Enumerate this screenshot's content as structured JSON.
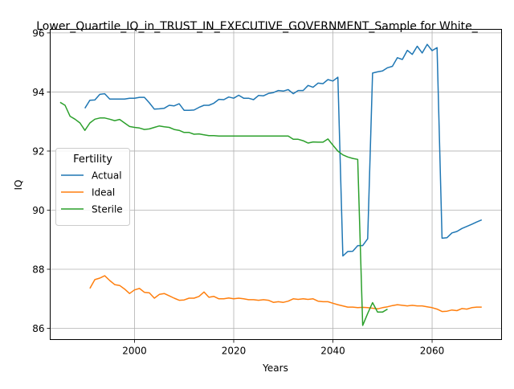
{
  "chart_data": {
    "type": "line",
    "title": "Lower_Quartile_IQ_in_TRUST_IN_EXECUTIVE_GOVERNMENT_Sample for White_",
    "xlabel": "Years",
    "ylabel": "IQ",
    "xlim": [
      1983,
      2074
    ],
    "ylim": [
      85.62,
      96.12
    ],
    "xticks": [
      2000,
      2020,
      2040,
      2060
    ],
    "yticks": [
      86,
      88,
      90,
      92,
      94,
      96
    ],
    "grid": true,
    "legend": {
      "title": "Fertility",
      "position": "center-left"
    },
    "series": [
      {
        "name": "Actual",
        "color": "#1f77b4",
        "x": [
          1990,
          1991,
          1992,
          1993,
          1994,
          1995,
          1996,
          1997,
          1998,
          1999,
          2000,
          2001,
          2002,
          2003,
          2004,
          2005,
          2006,
          2007,
          2008,
          2009,
          2010,
          2011,
          2012,
          2013,
          2014,
          2015,
          2016,
          2017,
          2018,
          2019,
          2020,
          2021,
          2022,
          2023,
          2024,
          2025,
          2026,
          2027,
          2028,
          2029,
          2030,
          2031,
          2032,
          2033,
          2034,
          2035,
          2036,
          2037,
          2038,
          2039,
          2040,
          2041,
          2042,
          2043,
          2044,
          2045,
          2046,
          2047,
          2048,
          2049,
          2050,
          2051,
          2052,
          2053,
          2054,
          2055,
          2056,
          2057,
          2058,
          2059,
          2060,
          2061,
          2062,
          2063,
          2064,
          2065,
          2066,
          2067,
          2068,
          2069,
          2070
        ],
        "y": [
          93.45,
          93.72,
          93.73,
          93.92,
          93.94,
          93.76,
          93.76,
          93.76,
          93.76,
          93.79,
          93.79,
          93.82,
          93.82,
          93.63,
          93.42,
          93.43,
          93.45,
          93.55,
          93.53,
          93.6,
          93.38,
          93.38,
          93.39,
          93.48,
          93.55,
          93.55,
          93.62,
          93.75,
          93.74,
          93.83,
          93.79,
          93.89,
          93.79,
          93.79,
          93.74,
          93.88,
          93.87,
          93.95,
          93.98,
          94.05,
          94.03,
          94.08,
          93.94,
          94.05,
          94.05,
          94.22,
          94.16,
          94.3,
          94.28,
          94.42,
          94.37,
          94.5,
          88.45,
          88.6,
          88.61,
          88.8,
          88.8,
          89.03,
          94.64,
          94.68,
          94.71,
          94.82,
          94.87,
          95.16,
          95.1,
          95.41,
          95.27,
          95.55,
          95.32,
          95.61,
          95.4,
          95.5,
          89.05,
          89.07,
          89.23,
          89.28,
          89.38,
          89.45,
          89.52,
          89.6,
          89.67
        ]
      },
      {
        "name": "Ideal",
        "color": "#ff7f0e",
        "x": [
          1991,
          1992,
          1993,
          1994,
          1995,
          1996,
          1997,
          1998,
          1999,
          2000,
          2001,
          2002,
          2003,
          2004,
          2005,
          2006,
          2007,
          2008,
          2009,
          2010,
          2011,
          2012,
          2013,
          2014,
          2015,
          2016,
          2017,
          2018,
          2019,
          2020,
          2021,
          2022,
          2023,
          2024,
          2025,
          2026,
          2027,
          2028,
          2029,
          2030,
          2031,
          2032,
          2033,
          2034,
          2035,
          2036,
          2037,
          2038,
          2039,
          2040,
          2041,
          2042,
          2043,
          2044,
          2045,
          2046,
          2047,
          2048,
          2049,
          2050,
          2051,
          2052,
          2053,
          2054,
          2055,
          2056,
          2057,
          2058,
          2059,
          2060,
          2061,
          2062,
          2063,
          2064,
          2065,
          2066,
          2067,
          2068,
          2069,
          2070
        ],
        "y": [
          87.35,
          87.65,
          87.7,
          87.78,
          87.62,
          87.48,
          87.45,
          87.33,
          87.18,
          87.3,
          87.35,
          87.22,
          87.2,
          87.02,
          87.15,
          87.18,
          87.1,
          87.02,
          86.95,
          86.96,
          87.02,
          87.02,
          87.08,
          87.23,
          87.05,
          87.08,
          87.0,
          87.0,
          87.03,
          87.0,
          87.02,
          87.0,
          86.97,
          86.97,
          86.95,
          86.97,
          86.95,
          86.88,
          86.9,
          86.88,
          86.92,
          87.0,
          86.98,
          87.0,
          86.98,
          87.0,
          86.92,
          86.9,
          86.9,
          86.85,
          86.8,
          86.76,
          86.72,
          86.72,
          86.7,
          86.71,
          86.7,
          86.68,
          86.66,
          86.7,
          86.73,
          86.77,
          86.8,
          86.78,
          86.76,
          86.78,
          86.76,
          86.76,
          86.73,
          86.7,
          86.65,
          86.57,
          86.58,
          86.62,
          86.6,
          86.67,
          86.65,
          86.7,
          86.72,
          86.72
        ]
      },
      {
        "name": "Sterile",
        "color": "#2ca02c",
        "x": [
          1985,
          1986,
          1987,
          1988,
          1989,
          1990,
          1991,
          1992,
          1993,
          1994,
          1995,
          1996,
          1997,
          1998,
          1999,
          2000,
          2001,
          2002,
          2003,
          2004,
          2005,
          2006,
          2007,
          2008,
          2009,
          2010,
          2011,
          2012,
          2013,
          2014,
          2015,
          2016,
          2017,
          2018,
          2019,
          2020,
          2021,
          2022,
          2023,
          2024,
          2025,
          2026,
          2027,
          2028,
          2029,
          2030,
          2031,
          2032,
          2033,
          2034,
          2035,
          2036,
          2037,
          2038,
          2039,
          2040,
          2041,
          2042,
          2043,
          2044,
          2045,
          2046,
          2047,
          2048,
          2049,
          2050,
          2051
        ],
        "y": [
          93.65,
          93.55,
          93.18,
          93.08,
          92.95,
          92.7,
          92.95,
          93.08,
          93.12,
          93.12,
          93.08,
          93.03,
          93.07,
          92.95,
          92.83,
          92.8,
          92.78,
          92.73,
          92.75,
          92.8,
          92.85,
          92.82,
          92.8,
          92.73,
          92.7,
          92.63,
          92.63,
          92.57,
          92.58,
          92.55,
          92.52,
          92.52,
          92.51,
          92.51,
          92.51,
          92.51,
          92.51,
          92.51,
          92.51,
          92.51,
          92.51,
          92.51,
          92.51,
          92.51,
          92.51,
          92.51,
          92.51,
          92.4,
          92.4,
          92.35,
          92.27,
          92.31,
          92.3,
          92.3,
          92.41,
          92.2,
          92.0,
          91.87,
          91.8,
          91.75,
          91.72,
          86.1,
          86.5,
          86.87,
          86.55,
          86.55,
          86.65
        ]
      }
    ]
  }
}
